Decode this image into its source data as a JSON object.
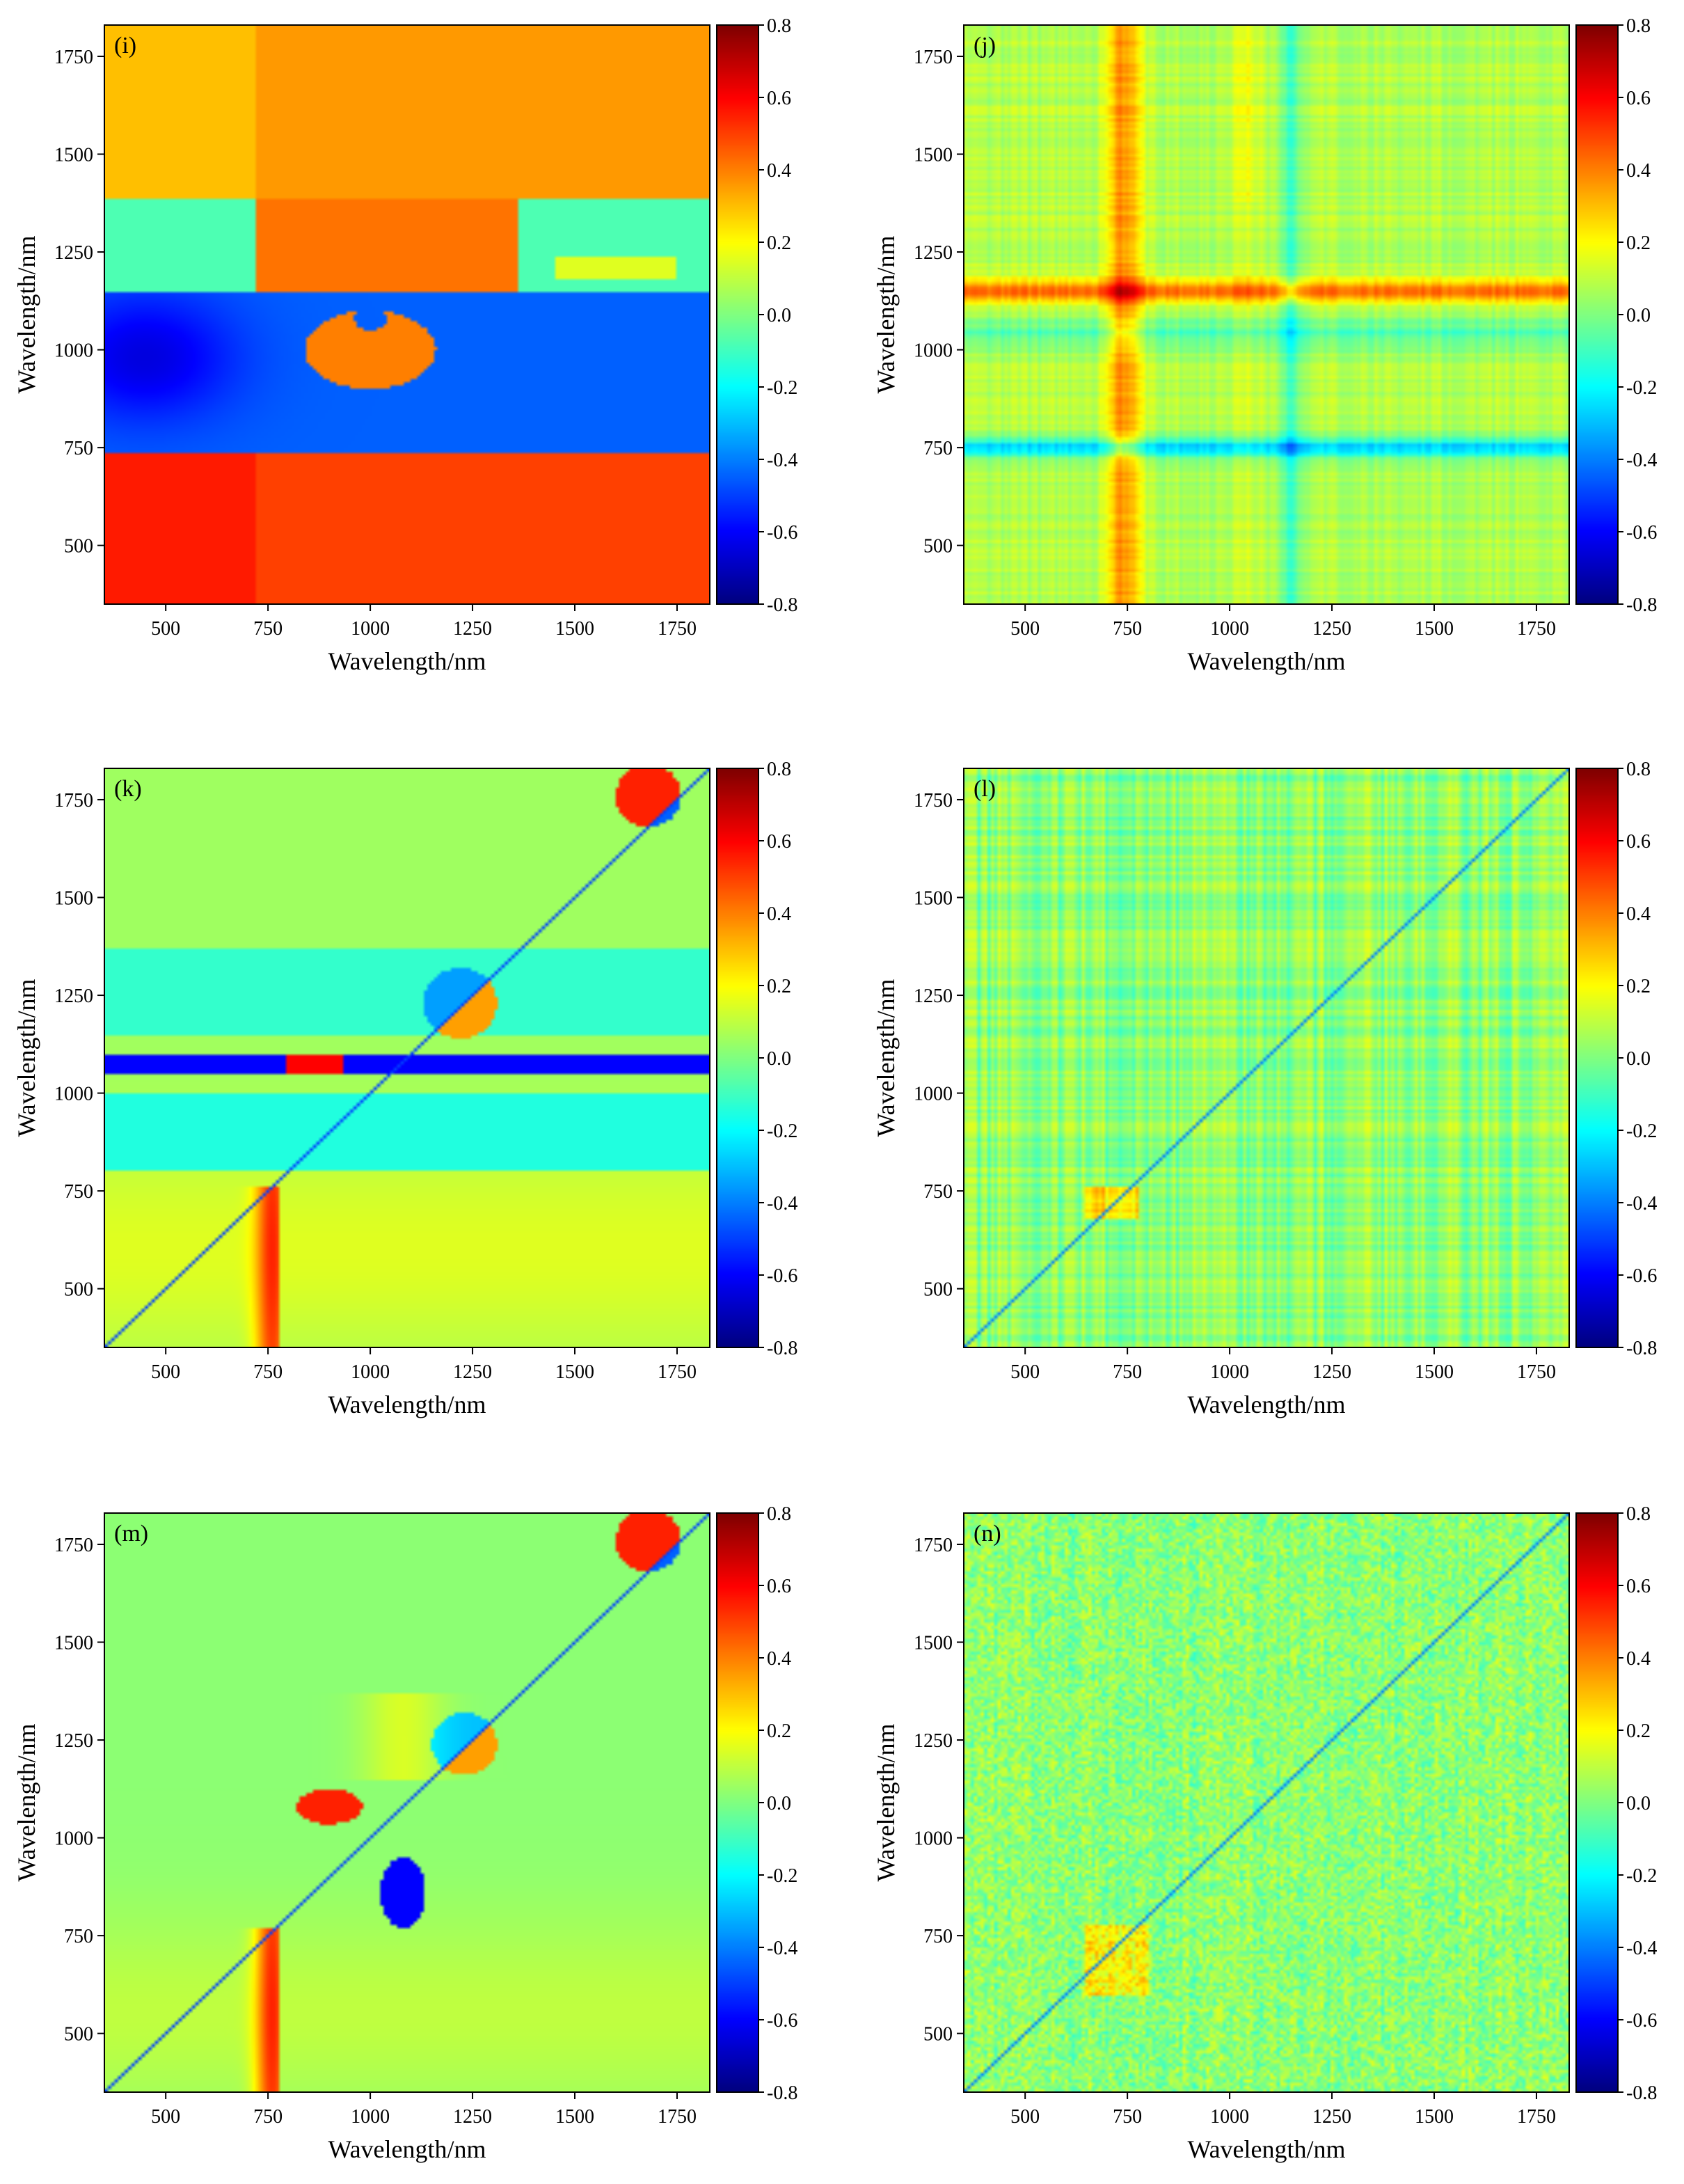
{
  "chart_data": [
    {
      "type": "heatmap",
      "panel_label": "(i)",
      "pattern": "i",
      "xlabel": "Wavelength/nm",
      "ylabel": "Wavelength/nm",
      "xlim": [
        350,
        1830
      ],
      "ylim": [
        350,
        1830
      ],
      "x_ticks": [
        500,
        750,
        1000,
        1250,
        1500,
        1750
      ],
      "y_ticks": [
        500,
        750,
        1000,
        1250,
        1500,
        1750
      ],
      "colorbar": {
        "range": [
          -0.8,
          0.8
        ],
        "ticks": [
          "0.8",
          "0.6",
          "0.4",
          "0.2",
          "0.0",
          "-0.2",
          "-0.4",
          "-0.6",
          "-0.8"
        ]
      }
    },
    {
      "type": "heatmap",
      "panel_label": "(j)",
      "pattern": "j",
      "xlabel": "Wavelength/nm",
      "ylabel": "Wavelength/nm",
      "xlim": [
        350,
        1830
      ],
      "ylim": [
        350,
        1830
      ],
      "x_ticks": [
        500,
        750,
        1000,
        1250,
        1500,
        1750
      ],
      "y_ticks": [
        500,
        750,
        1000,
        1250,
        1500,
        1750
      ],
      "colorbar": {
        "range": [
          -0.8,
          0.8
        ],
        "ticks": [
          "0.8",
          "0.6",
          "0.4",
          "0.2",
          "0.0",
          "-0.2",
          "-0.4",
          "-0.6",
          "-0.8"
        ]
      }
    },
    {
      "type": "heatmap",
      "panel_label": "(k)",
      "pattern": "k",
      "xlabel": "Wavelength/nm",
      "ylabel": "Wavelength/nm",
      "xlim": [
        350,
        1830
      ],
      "ylim": [
        350,
        1830
      ],
      "x_ticks": [
        500,
        750,
        1000,
        1250,
        1500,
        1750
      ],
      "y_ticks": [
        500,
        750,
        1000,
        1250,
        1500,
        1750
      ],
      "colorbar": {
        "range": [
          -0.8,
          0.8
        ],
        "ticks": [
          "0.8",
          "0.6",
          "0.4",
          "0.2",
          "0.0",
          "-0.2",
          "-0.4",
          "-0.6",
          "-0.8"
        ]
      }
    },
    {
      "type": "heatmap",
      "panel_label": "(l)",
      "pattern": "l",
      "xlabel": "Wavelength/nm",
      "ylabel": "Wavelength/nm",
      "xlim": [
        350,
        1830
      ],
      "ylim": [
        350,
        1830
      ],
      "x_ticks": [
        500,
        750,
        1000,
        1250,
        1500,
        1750
      ],
      "y_ticks": [
        500,
        750,
        1000,
        1250,
        1500,
        1750
      ],
      "colorbar": {
        "range": [
          -0.8,
          0.8
        ],
        "ticks": [
          "0.8",
          "0.6",
          "0.4",
          "0.2",
          "0.0",
          "-0.2",
          "-0.4",
          "-0.6",
          "-0.8"
        ]
      }
    },
    {
      "type": "heatmap",
      "panel_label": "(m)",
      "pattern": "m",
      "xlabel": "Wavelength/nm",
      "ylabel": "Wavelength/nm",
      "xlim": [
        350,
        1830
      ],
      "ylim": [
        350,
        1830
      ],
      "x_ticks": [
        500,
        750,
        1000,
        1250,
        1500,
        1750
      ],
      "y_ticks": [
        500,
        750,
        1000,
        1250,
        1500,
        1750
      ],
      "colorbar": {
        "range": [
          -0.8,
          0.8
        ],
        "ticks": [
          "0.8",
          "0.6",
          "0.4",
          "0.2",
          "0.0",
          "-0.2",
          "-0.4",
          "-0.6",
          "-0.8"
        ]
      }
    },
    {
      "type": "heatmap",
      "panel_label": "(n)",
      "pattern": "n",
      "xlabel": "Wavelength/nm",
      "ylabel": "Wavelength/nm",
      "xlim": [
        350,
        1830
      ],
      "ylim": [
        350,
        1830
      ],
      "x_ticks": [
        500,
        750,
        1000,
        1250,
        1500,
        1750
      ],
      "y_ticks": [
        500,
        750,
        1000,
        1250,
        1500,
        1750
      ],
      "colorbar": {
        "range": [
          -0.8,
          0.8
        ],
        "ticks": [
          "0.8",
          "0.6",
          "0.4",
          "0.2",
          "0.0",
          "-0.2",
          "-0.4",
          "-0.6",
          "-0.8"
        ]
      }
    }
  ]
}
